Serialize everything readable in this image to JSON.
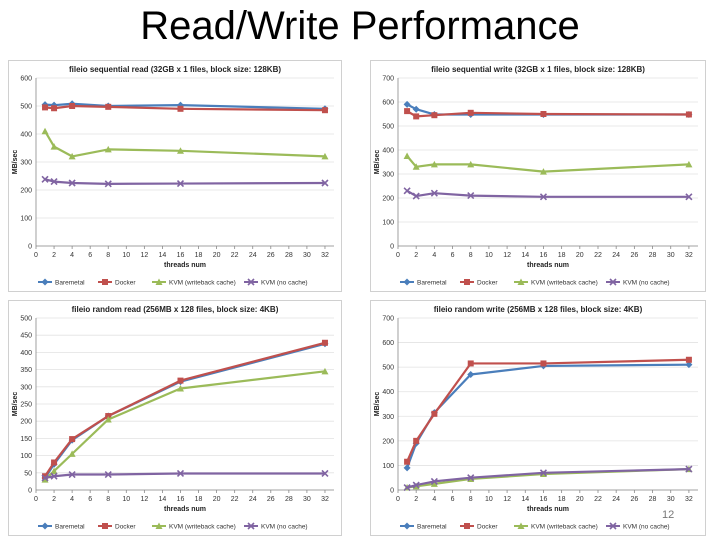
{
  "slide": {
    "title": "Read/Write Performance",
    "page_number": "12"
  },
  "colors": {
    "Baremetal": "#4a7ebb",
    "Docker": "#c0504d",
    "KVM (writeback cache)": "#9bbb59",
    "KVM (no cache)": "#8064a2"
  },
  "chart_data": [
    {
      "type": "line",
      "title": "fileio sequential read (32GB x 1 files, block size: 128KB)",
      "xlabel": "threads num",
      "ylabel": "MB/sec",
      "xlim": [
        0,
        33
      ],
      "xticks": [
        0,
        2,
        4,
        6,
        8,
        10,
        12,
        14,
        16,
        18,
        20,
        22,
        24,
        26,
        28,
        30,
        32
      ],
      "ylim": [
        0,
        600
      ],
      "yticks": [
        0,
        100,
        200,
        300,
        400,
        500,
        600
      ],
      "legend_position": "bottom",
      "series": [
        {
          "name": "Baremetal",
          "x": [
            1,
            2,
            4,
            8,
            16,
            32
          ],
          "values": [
            505,
            503,
            508,
            500,
            503,
            490
          ]
        },
        {
          "name": "Docker",
          "x": [
            1,
            2,
            4,
            8,
            16,
            32
          ],
          "values": [
            495,
            492,
            500,
            497,
            490,
            485
          ]
        },
        {
          "name": "KVM (writeback cache)",
          "x": [
            1,
            2,
            4,
            8,
            16,
            32
          ],
          "values": [
            410,
            355,
            320,
            345,
            340,
            320
          ]
        },
        {
          "name": "KVM (no cache)",
          "x": [
            1,
            2,
            4,
            8,
            16,
            32
          ],
          "values": [
            238,
            230,
            225,
            222,
            223,
            225
          ]
        }
      ]
    },
    {
      "type": "line",
      "title": "fileio sequential write (32GB x 1 files, block size: 128KB)",
      "xlabel": "threads num",
      "ylabel": "MB/sec",
      "xlim": [
        0,
        33
      ],
      "xticks": [
        0,
        2,
        4,
        6,
        8,
        10,
        12,
        14,
        16,
        18,
        20,
        22,
        24,
        26,
        28,
        30,
        32
      ],
      "ylim": [
        0,
        700
      ],
      "yticks": [
        0,
        100,
        200,
        300,
        400,
        500,
        600,
        700
      ],
      "legend_position": "bottom",
      "series": [
        {
          "name": "Baremetal",
          "x": [
            1,
            2,
            4,
            8,
            16,
            32
          ],
          "values": [
            590,
            570,
            548,
            548,
            548,
            548
          ]
        },
        {
          "name": "Docker",
          "x": [
            1,
            2,
            4,
            8,
            16,
            32
          ],
          "values": [
            562,
            540,
            545,
            555,
            550,
            548
          ]
        },
        {
          "name": "KVM (writeback cache)",
          "x": [
            1,
            2,
            4,
            8,
            16,
            32
          ],
          "values": [
            375,
            330,
            340,
            340,
            310,
            340
          ]
        },
        {
          "name": "KVM (no cache)",
          "x": [
            1,
            2,
            4,
            8,
            16,
            32
          ],
          "values": [
            230,
            208,
            220,
            210,
            205,
            205
          ]
        }
      ]
    },
    {
      "type": "line",
      "title": "fileio random read (256MB x 128 files, block size: 4KB)",
      "xlabel": "threads num",
      "ylabel": "MB/sec",
      "xlim": [
        0,
        33
      ],
      "xticks": [
        0,
        2,
        4,
        6,
        8,
        10,
        12,
        14,
        16,
        18,
        20,
        22,
        24,
        26,
        28,
        30,
        32
      ],
      "ylim": [
        0,
        500
      ],
      "yticks": [
        0,
        50,
        100,
        150,
        200,
        250,
        300,
        350,
        400,
        450,
        500
      ],
      "legend_position": "bottom",
      "series": [
        {
          "name": "Baremetal",
          "x": [
            1,
            2,
            4,
            8,
            16,
            32
          ],
          "values": [
            35,
            75,
            145,
            215,
            315,
            425
          ]
        },
        {
          "name": "Docker",
          "x": [
            1,
            2,
            4,
            8,
            16,
            32
          ],
          "values": [
            40,
            80,
            148,
            215,
            318,
            428
          ]
        },
        {
          "name": "KVM (writeback cache)",
          "x": [
            1,
            2,
            4,
            8,
            16,
            32
          ],
          "values": [
            30,
            55,
            105,
            205,
            295,
            345
          ]
        },
        {
          "name": "KVM (no cache)",
          "x": [
            1,
            2,
            4,
            8,
            16,
            32
          ],
          "values": [
            35,
            40,
            45,
            45,
            48,
            48
          ]
        }
      ]
    },
    {
      "type": "line",
      "title": "fileio random write (256MB x 128 files, block size: 4KB)",
      "xlabel": "threads num",
      "ylabel": "MB/sec",
      "xlim": [
        0,
        33
      ],
      "xticks": [
        0,
        2,
        4,
        6,
        8,
        10,
        12,
        14,
        16,
        18,
        20,
        22,
        24,
        26,
        28,
        30,
        32
      ],
      "ylim": [
        0,
        700
      ],
      "yticks": [
        0,
        100,
        200,
        300,
        400,
        500,
        600,
        700
      ],
      "legend_position": "bottom",
      "series": [
        {
          "name": "Baremetal",
          "x": [
            1,
            2,
            4,
            8,
            16,
            32
          ],
          "values": [
            90,
            190,
            315,
            470,
            505,
            510
          ]
        },
        {
          "name": "Docker",
          "x": [
            1,
            2,
            4,
            8,
            16,
            32
          ],
          "values": [
            115,
            200,
            310,
            515,
            515,
            530
          ]
        },
        {
          "name": "KVM (writeback cache)",
          "x": [
            1,
            2,
            4,
            8,
            16,
            32
          ],
          "values": [
            10,
            15,
            25,
            45,
            65,
            85
          ]
        },
        {
          "name": "KVM (no cache)",
          "x": [
            1,
            2,
            4,
            8,
            16,
            32
          ],
          "values": [
            10,
            20,
            35,
            50,
            70,
            85
          ]
        }
      ]
    }
  ]
}
